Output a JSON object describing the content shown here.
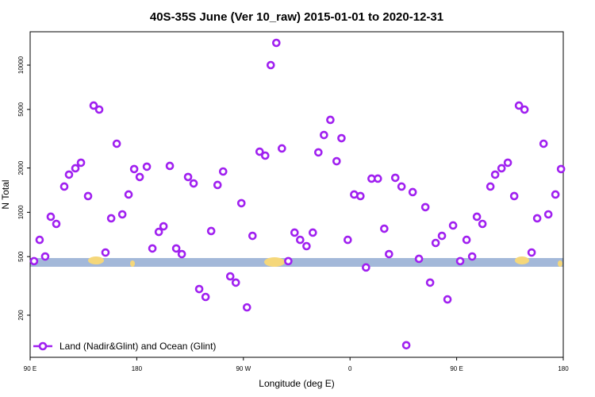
{
  "chart_data": {
    "type": "scatter",
    "title": "40S-35S June (Ver 10_raw)   2015-01-01 to 2020-12-31",
    "x_label": "Longitude (deg E)",
    "y_label": "N Total",
    "log_y": true,
    "legend_position": "bottom-left",
    "xlim": [
      90,
      540
    ],
    "ylim": [
      103.5,
      16850
    ],
    "xticks": [
      {
        "value": 90,
        "label": "90 E"
      },
      180,
      {
        "value": 270,
        "label": "90 W"
      },
      {
        "value": 360,
        "label": "0"
      },
      {
        "value": 450,
        "label": "90 E"
      },
      {
        "value": 540,
        "label": "180"
      }
    ],
    "yticks": [
      200,
      500,
      1000,
      2000,
      5000,
      10000
    ],
    "series": [
      {
        "name": "Land (Nadir&Glint) and Ocean (Glint)",
        "color": "#a020f0",
        "x": [
          93.3,
          98.0,
          102.7,
          107.4,
          112.1,
          118.8,
          122.8,
          128.2,
          132.9,
          138.9,
          143.6,
          148.3,
          153.6,
          158.4,
          163.1,
          167.8,
          173.1,
          177.8,
          182.5,
          188.5,
          193.2,
          198.6,
          202.6,
          207.9,
          213.3,
          218.0,
          223.3,
          228.0,
          232.7,
          238.1,
          242.8,
          248.2,
          252.9,
          258.9,
          263.6,
          268.3,
          273.0,
          277.7,
          283.7,
          288.4,
          293.1,
          297.8,
          302.5,
          307.9,
          313.2,
          317.9,
          323.3,
          328.6,
          333.3,
          338.0,
          343.4,
          348.7,
          352.8,
          358.1,
          363.5,
          368.8,
          373.5,
          378.2,
          383.5,
          388.9,
          392.9,
          398.2,
          403.5,
          407.5,
          412.9,
          418.2,
          423.6,
          427.6,
          432.3,
          437.6,
          442.3,
          447.0,
          453.0,
          458.4,
          463.1,
          467.1,
          471.8,
          478.5,
          482.5,
          487.9,
          493.2,
          498.6,
          502.6,
          507.3,
          513.3,
          518.0,
          523.4,
          527.4,
          533.4,
          538.1
        ],
        "values": [
          466,
          650,
          501,
          933,
          834,
          1496,
          1803,
          1991,
          2173,
          1289,
          5309,
          4989,
          533,
          910,
          2924,
          968,
          1321,
          1967,
          1738,
          2042,
          568,
          736,
          803,
          2066,
          568,
          520,
          1738,
          1571,
          301,
          266,
          746,
          1534,
          1893,
          367,
          333,
          1153,
          226,
          692,
          2582,
          2427,
          10000,
          14160,
          2716,
          466,
          728,
          650,
          589,
          728,
          2553,
          3350,
          4246,
          2224,
          3189,
          650,
          1321,
          1289,
          422,
          1694,
          1694,
          774,
          520,
          1716,
          1496,
          125,
          1371,
          483,
          1084,
          333,
          619,
          692,
          256,
          814,
          466,
          650,
          501,
          933,
          834,
          1496,
          1803,
          1991,
          2173,
          1289,
          5309,
          4989,
          533,
          910,
          2924,
          968,
          1321,
          1967
        ]
      }
    ]
  }
}
